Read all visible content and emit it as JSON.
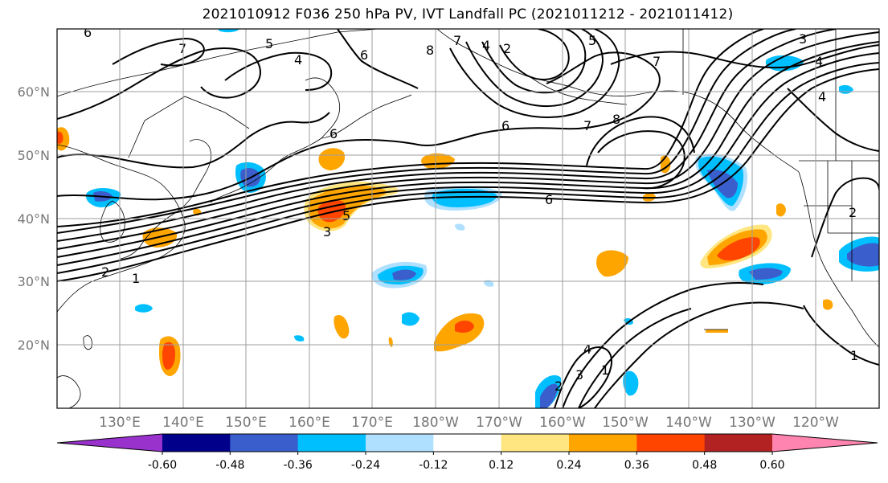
{
  "title": "2021010912 F036 250 hPa PV, IVT Landfall PC (2021011212 - 2021011412)",
  "map": {
    "latitude_labels": [
      "60°N",
      "50°N",
      "40°N",
      "30°N",
      "20°N"
    ],
    "longitude_labels": [
      "130°E",
      "140°E",
      "150°E",
      "160°E",
      "170°E",
      "180°W",
      "170°W",
      "160°W",
      "150°W",
      "140°W",
      "130°W",
      "120°W"
    ],
    "contour_labels": [
      "6",
      "7",
      "5",
      "4",
      "6",
      "8",
      "7",
      "4",
      "2",
      "5",
      "7",
      "3",
      "4",
      "4",
      "6",
      "6",
      "7",
      "8",
      "6",
      "5",
      "3",
      "2",
      "1",
      "2",
      "4",
      "3",
      "1",
      "2",
      "1"
    ]
  },
  "colorbar": {
    "ticks": [
      "-0.60",
      "-0.48",
      "-0.36",
      "-0.24",
      "-0.12",
      "0.12",
      "0.24",
      "0.36",
      "0.48",
      "0.60"
    ],
    "colors": [
      "#9932cc",
      "#00008b",
      "#3a5fcd",
      "#00bfff",
      "#b0e0ff",
      "#ffffff",
      "#ffe680",
      "#ffa500",
      "#ff4500",
      "#b22222",
      "#ff85b0"
    ]
  }
}
